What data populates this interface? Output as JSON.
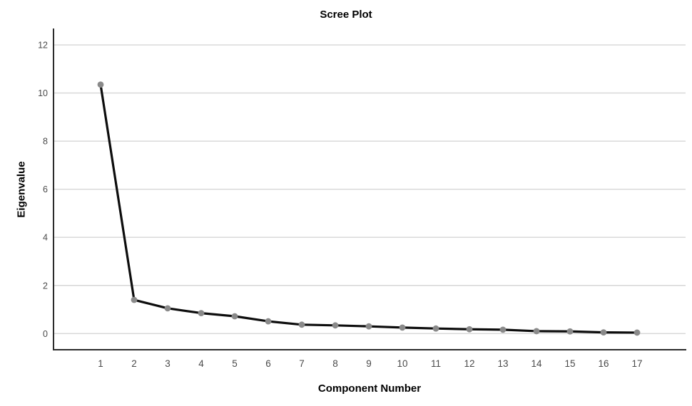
{
  "chart_data": {
    "type": "line",
    "title": "Scree Plot",
    "xlabel": "Component Number",
    "ylabel": "Eigenvalue",
    "categories": [
      1,
      2,
      3,
      4,
      5,
      6,
      7,
      8,
      9,
      10,
      11,
      12,
      13,
      14,
      15,
      16,
      17
    ],
    "values": [
      10.35,
      1.4,
      1.05,
      0.85,
      0.72,
      0.51,
      0.37,
      0.34,
      0.3,
      0.25,
      0.21,
      0.18,
      0.16,
      0.1,
      0.09,
      0.05,
      0.04
    ],
    "y_ticks": [
      0,
      2,
      4,
      6,
      8,
      10,
      12
    ],
    "ylim": [
      0,
      12.7
    ],
    "grid": "horizontal-only",
    "legend": "none",
    "marker_shape": "circle",
    "colors": {
      "line": "#0d0d0d",
      "marker": "#8a8a8a",
      "gridline": "#d6d6d6",
      "axis": "#2b2b2b",
      "tick_label": "#4a4a4a",
      "text": "#000000",
      "background": "#ffffff"
    }
  }
}
